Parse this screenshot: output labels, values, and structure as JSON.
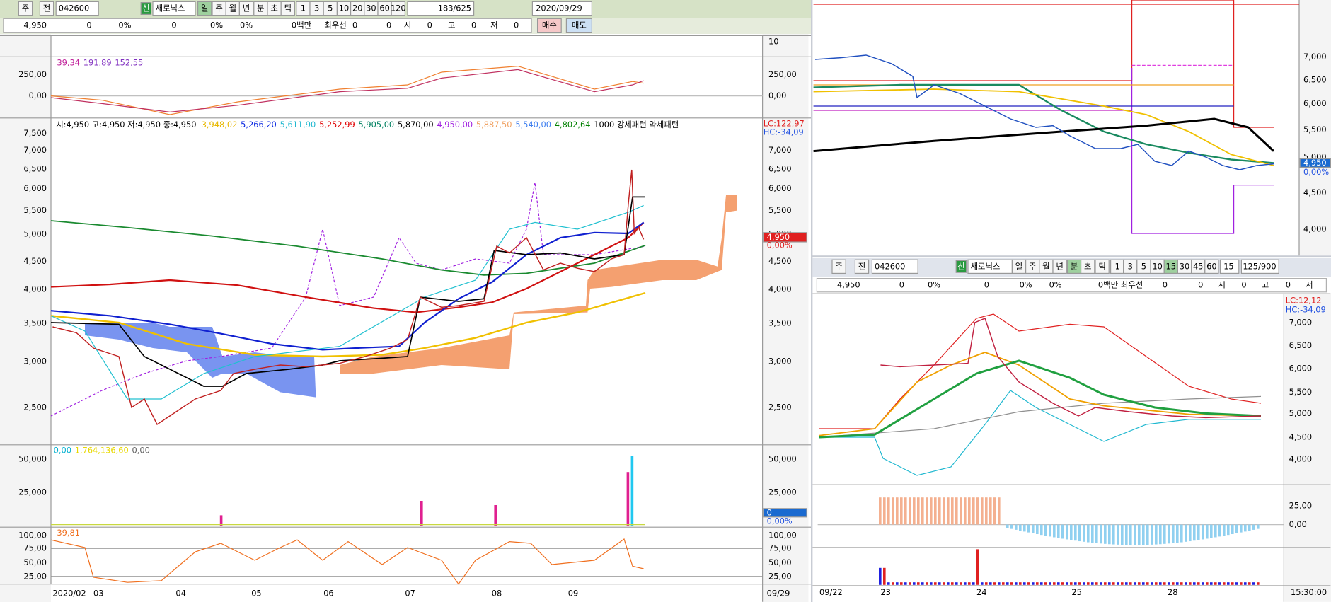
{
  "left": {
    "toolbar": {
      "tabs": [
        "주",
        "전"
      ],
      "code": "042600",
      "badge": "신",
      "name": "새로닉스",
      "periods": [
        "일",
        "주",
        "월",
        "년",
        "분",
        "초",
        "틱"
      ],
      "intervals": [
        "1",
        "3",
        "5",
        "10",
        "20",
        "30",
        "60",
        "120"
      ],
      "count": "183/625",
      "date": "2020/09/29"
    },
    "info": [
      "4,950",
      "0",
      "0%",
      "0",
      "0%",
      "0%",
      "0백만",
      "최우선",
      "0",
      "0",
      "시",
      "0",
      "고",
      "0",
      "저",
      "0"
    ],
    "buy": "매수",
    "sell": "매도",
    "mini_ticks": [
      "10"
    ],
    "macd": {
      "legend": [
        {
          "text": "39,34",
          "color": "#c0209a"
        },
        {
          "text": "191,89",
          "color": "#8030c0"
        },
        {
          "text": "152,55",
          "color": "#8030c0"
        }
      ],
      "ticks": [
        "250,00",
        "0,00"
      ]
    },
    "price": {
      "ohlc": "시:4,950 고:4,950 저:4,950 종:4,950",
      "legend": [
        {
          "text": "3,948,02",
          "color": "#e8b800"
        },
        {
          "text": "5,266,20",
          "color": "#0020e0"
        },
        {
          "text": "5,611,90",
          "color": "#20b8d0"
        },
        {
          "text": "5,252,99",
          "color": "#e00000"
        },
        {
          "text": "5,905,00",
          "color": "#008060"
        },
        {
          "text": "5,870,00",
          "color": "#000000"
        },
        {
          "text": "4,950,00",
          "color": "#a020e0"
        },
        {
          "text": "5,887,50",
          "color": "#f0a060"
        },
        {
          "text": "5,540,00",
          "color": "#4080f0"
        },
        {
          "text": "4,802,64",
          "color": "#008000"
        },
        {
          "text": "1000 강세패턴 약세패턴",
          "color": "#000000"
        }
      ],
      "lc": "LC:122,97",
      "hc": "HC:-34,09",
      "ticks": [
        "7,500",
        "7,000",
        "6,500",
        "6,000",
        "5,500",
        "5,000",
        "4,500",
        "4,000",
        "3,500",
        "3,000",
        "2,500"
      ],
      "current": "4,950",
      "change": "0,00%"
    },
    "volume": {
      "legend": [
        {
          "text": "0,00",
          "color": "#00b0d0"
        },
        {
          "text": "1,764,136,60",
          "color": "#e8d800"
        },
        {
          "text": "0,00",
          "color": "#606060"
        }
      ],
      "ticks": [
        "50,000",
        "25,000"
      ],
      "current": "0",
      "change": "0,00%"
    },
    "rsi": {
      "legend": {
        "text": "39,81",
        "color": "#f07020"
      },
      "ticks": [
        "100,00",
        "75,00",
        "50,00",
        "25,00"
      ]
    },
    "xaxis": [
      "2020/02",
      "03",
      "04",
      "05",
      "06",
      "07",
      "08",
      "09",
      "09/29"
    ]
  },
  "right_top": {
    "ticks": [
      "7,000",
      "6,500",
      "6,000",
      "5,500",
      "5,000",
      "4,500",
      "4,000"
    ],
    "current": "4,950",
    "change": "0,00%"
  },
  "right_bottom": {
    "toolbar": {
      "tabs": [
        "주",
        "전"
      ],
      "code": "042600",
      "badge": "신",
      "name": "새로닉스",
      "periods": [
        "일",
        "주",
        "월",
        "년",
        "분",
        "초",
        "틱"
      ],
      "intervals": [
        "1",
        "3",
        "5",
        "10",
        "15",
        "30",
        "45",
        "60"
      ],
      "unit": "15",
      "count": "125/900"
    },
    "info": [
      "4,950",
      "0",
      "0%",
      "0",
      "0%",
      "0%",
      "0백만",
      "최우선",
      "0",
      "0",
      "시",
      "0",
      "고",
      "0",
      "저"
    ],
    "lc": "LC:12,12",
    "hc": "HC:-34,09",
    "price_ticks": [
      "7,000",
      "6,500",
      "6,000",
      "5,500",
      "5,000",
      "4,500",
      "4,000"
    ],
    "osc_ticks": [
      "25,00",
      "0,00"
    ],
    "xaxis": [
      "09/22",
      "23",
      "24",
      "25",
      "28",
      "15:30:00"
    ]
  }
}
